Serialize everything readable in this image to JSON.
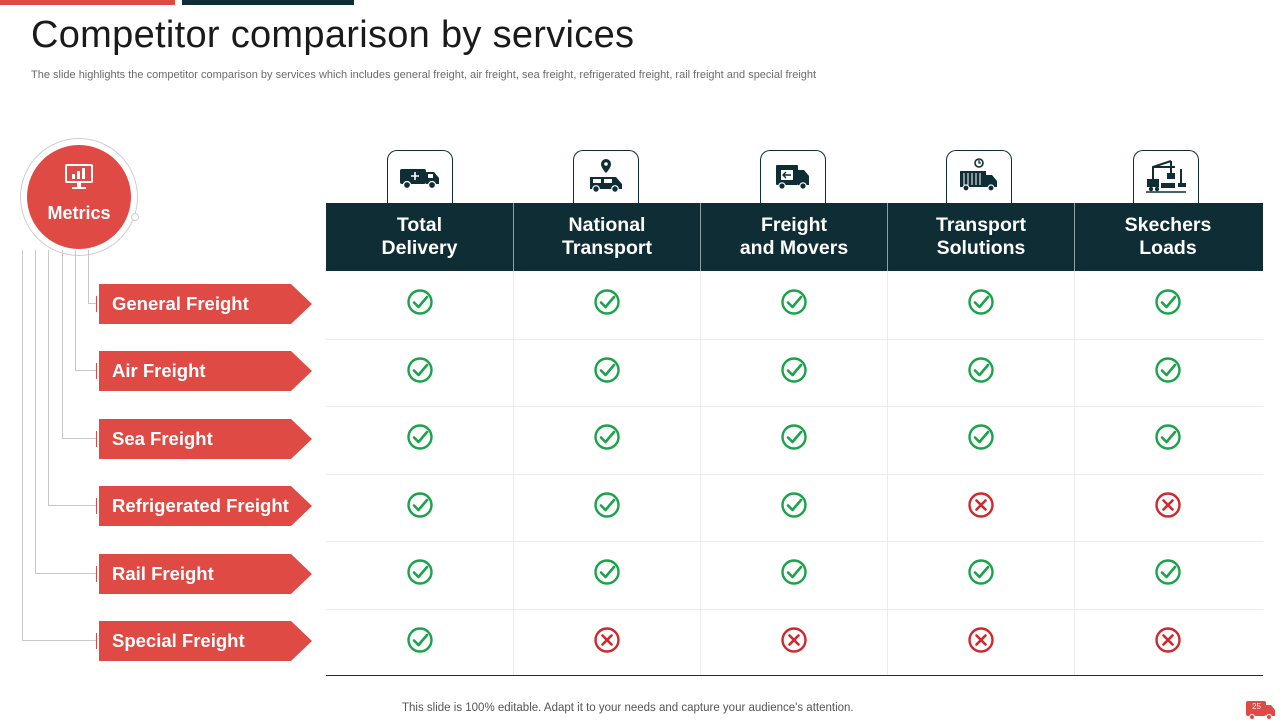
{
  "slide": {
    "title": "Competitor comparison by services",
    "subtitle": "The slide highlights the competitor comparison by services which includes general freight, air freight, sea freight, refrigerated freight, rail freight and special freight",
    "footer": "This slide is 100% editable. Adapt it to your needs and capture your audience's attention.",
    "page_number": "25"
  },
  "metrics_label": "Metrics",
  "columns": [
    {
      "line1": "Total",
      "line2": "Delivery",
      "icon": "truck-icon"
    },
    {
      "line1": "National",
      "line2": "Transport",
      "icon": "van-location-icon"
    },
    {
      "line1": "Freight",
      "line2": "and Movers",
      "icon": "moving-truck-icon"
    },
    {
      "line1": "Transport",
      "line2": "Solutions",
      "icon": "container-truck-icon"
    },
    {
      "line1": "Skechers",
      "line2": "Loads",
      "icon": "crane-loading-icon"
    }
  ],
  "rows": [
    {
      "label": "General Freight",
      "values": [
        true,
        true,
        true,
        true,
        true
      ]
    },
    {
      "label": "Air Freight",
      "values": [
        true,
        true,
        true,
        true,
        true
      ]
    },
    {
      "label": "Sea Freight",
      "values": [
        true,
        true,
        true,
        true,
        true
      ]
    },
    {
      "label": "Refrigerated Freight",
      "values": [
        true,
        true,
        true,
        false,
        false
      ]
    },
    {
      "label": "Rail Freight",
      "values": [
        true,
        true,
        true,
        true,
        true
      ]
    },
    {
      "label": "Special Freight",
      "values": [
        true,
        false,
        false,
        false,
        false
      ]
    }
  ],
  "colors": {
    "accent_red": "#e04a44",
    "header_dark": "#0f2d35",
    "check_green": "#1aa34a",
    "cross_red": "#d0282e"
  }
}
